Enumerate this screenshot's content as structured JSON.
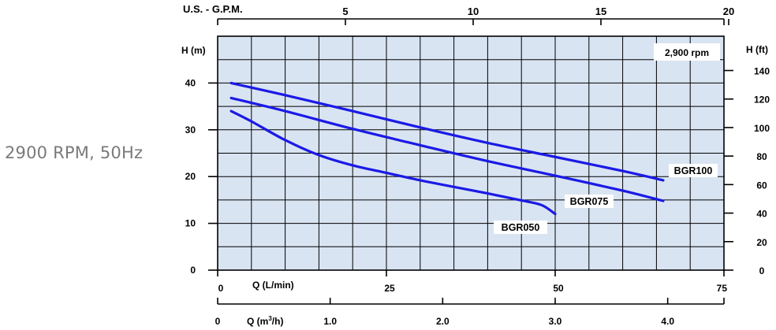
{
  "caption": "2900 RPM, 50Hz",
  "chart_data": {
    "type": "line",
    "title": "",
    "rpm_label": "2,900 rpm",
    "x_axes": {
      "lpm": {
        "label": "Q (L/min)",
        "ticks": [
          0,
          25,
          50,
          75
        ],
        "range": [
          0,
          75
        ]
      },
      "gpm": {
        "label": "U.S. - G.P.M.",
        "ticks": [
          5,
          10,
          15,
          20
        ]
      },
      "m3h": {
        "label_main": "Q (m",
        "label_sup": "3",
        "label_end": "/h)",
        "ticks": [
          "0",
          "1.0",
          "2.0",
          "3.0",
          "4.0"
        ],
        "tick_values": [
          0,
          1.0,
          2.0,
          3.0,
          4.0
        ]
      }
    },
    "y_axes": {
      "m": {
        "label": "H (m)",
        "ticks": [
          0,
          10,
          20,
          30,
          40
        ],
        "range": [
          0,
          50
        ]
      },
      "ft": {
        "label": "H (ft)",
        "ticks": [
          0,
          20,
          40,
          60,
          80,
          100,
          120,
          140
        ]
      }
    },
    "grid": true,
    "series": [
      {
        "name": "BGR100",
        "x_lpm": [
          2,
          10,
          20,
          30,
          40,
          50,
          60,
          66
        ],
        "y_m": [
          40,
          37.4,
          34.0,
          30.5,
          27.2,
          24.2,
          21.2,
          19.2
        ]
      },
      {
        "name": "BGR075",
        "x_lpm": [
          2,
          10,
          20,
          30,
          40,
          50,
          60,
          66
        ],
        "y_m": [
          36.8,
          34.0,
          30.2,
          26.7,
          23.3,
          20.2,
          17.0,
          14.8
        ]
      },
      {
        "name": "BGR050",
        "x_lpm": [
          2,
          5,
          10,
          15,
          20,
          25,
          30,
          35,
          40,
          45,
          48,
          50
        ],
        "y_m": [
          34,
          31.8,
          27.8,
          24.6,
          22.4,
          20.8,
          19.2,
          17.8,
          16.4,
          14.9,
          13.9,
          12.0
        ]
      }
    ],
    "colors": {
      "curve": "#1a1ae6",
      "plot_bg": "#d9e4f2",
      "grid": "#000000"
    }
  }
}
